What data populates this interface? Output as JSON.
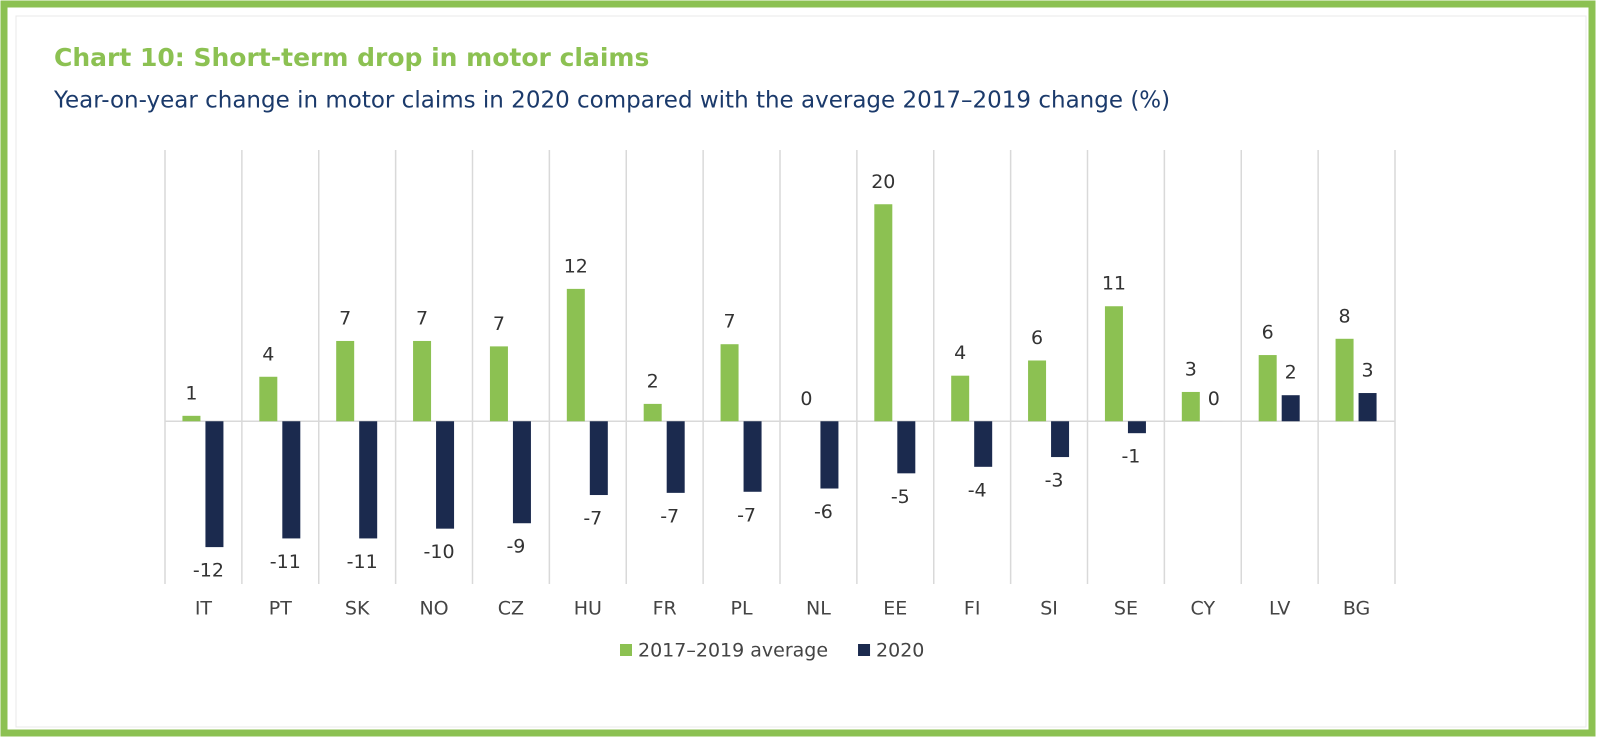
{
  "chart_data": {
    "type": "bar",
    "title": "Chart 10: Short-term drop in motor claims",
    "subtitle": "Year-on-year change in motor claims in 2020 compared with the average 2017–2019 change (%)",
    "categories": [
      "IT",
      "PT",
      "SK",
      "NO",
      "CZ",
      "HU",
      "FR",
      "PL",
      "NL",
      "EE",
      "FI",
      "SI",
      "SE",
      "CY",
      "LV",
      "BG"
    ],
    "series": [
      {
        "name": "2017–2019 average",
        "color": "#8cc152",
        "values": [
          0.5,
          4.1,
          7.4,
          7.4,
          6.9,
          12.2,
          1.6,
          7.1,
          0,
          20,
          4.2,
          5.6,
          10.6,
          2.7,
          6.1,
          7.6
        ],
        "value_labels": [
          "1",
          "4",
          "7",
          "7",
          "7",
          "12",
          "2",
          "7",
          "0",
          "20",
          "4",
          "6",
          "11",
          "3",
          "6",
          "8"
        ]
      },
      {
        "name": "2020",
        "color": "#1b2a4e",
        "values": [
          -11.6,
          -10.8,
          -10.8,
          -9.9,
          -9.4,
          -6.8,
          -6.6,
          -6.5,
          -6.2,
          -4.8,
          -4.2,
          -3.3,
          -1.1,
          0,
          2.4,
          2.6
        ],
        "value_labels": [
          "-12",
          "-11",
          "-11",
          "-10",
          "-9",
          "-7",
          "-7",
          "-7",
          "-6",
          "-5",
          "-4",
          "-3",
          "-1",
          "0",
          "2",
          "3"
        ]
      }
    ],
    "ylim": [
      -15,
      25
    ]
  }
}
